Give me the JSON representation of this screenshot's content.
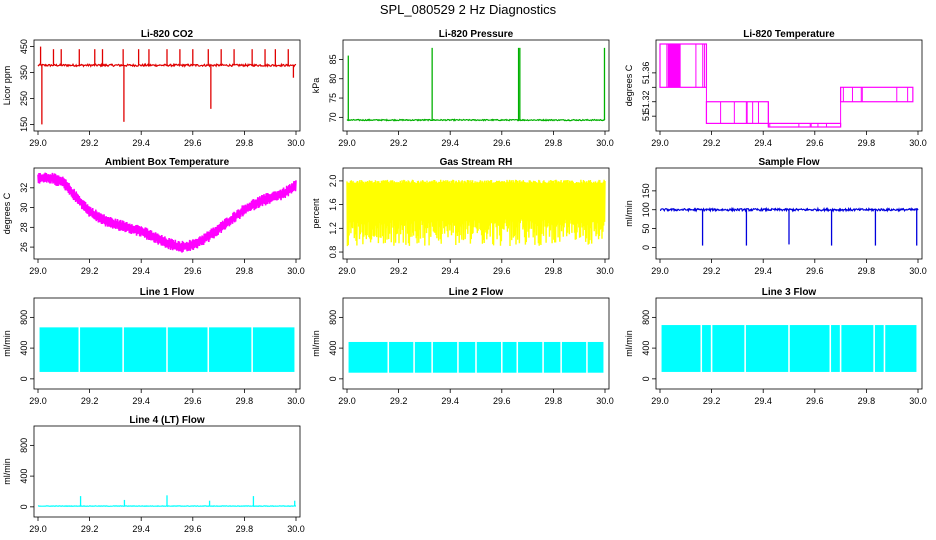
{
  "title": "SPL_080529  2 Hz Diagnostics",
  "chart_data": [
    {
      "id": "co2",
      "type": "line",
      "title": "Li-820 CO2",
      "ylabel": "Licor ppm",
      "color": "#e00000",
      "xlim": [
        29.0,
        30.0
      ],
      "ylim": [
        140,
        460
      ],
      "yticks": [
        150,
        250,
        350,
        450
      ],
      "ytick_labels": [
        "150",
        "250",
        "350",
        "450"
      ],
      "xticks": [
        29.0,
        29.2,
        29.4,
        29.6,
        29.8,
        30.0
      ],
      "xtick_labels": [
        "29.0",
        "29.2",
        "29.4",
        "29.6",
        "29.8",
        "30.0"
      ],
      "baseline": 378,
      "noise": 8,
      "events": [
        {
          "x": 29.01,
          "v": 450
        },
        {
          "x": 29.015,
          "v": 150
        },
        {
          "x": 29.06,
          "v": 440
        },
        {
          "x": 29.09,
          "v": 440
        },
        {
          "x": 29.16,
          "v": 440
        },
        {
          "x": 29.22,
          "v": 440
        },
        {
          "x": 29.25,
          "v": 440
        },
        {
          "x": 29.33,
          "v": 440
        },
        {
          "x": 29.333,
          "v": 160
        },
        {
          "x": 29.39,
          "v": 440
        },
        {
          "x": 29.43,
          "v": 440
        },
        {
          "x": 29.5,
          "v": 440
        },
        {
          "x": 29.55,
          "v": 440
        },
        {
          "x": 29.6,
          "v": 440
        },
        {
          "x": 29.66,
          "v": 440
        },
        {
          "x": 29.67,
          "v": 210
        },
        {
          "x": 29.71,
          "v": 440
        },
        {
          "x": 29.76,
          "v": 440
        },
        {
          "x": 29.83,
          "v": 440
        },
        {
          "x": 29.88,
          "v": 440
        },
        {
          "x": 29.92,
          "v": 440
        },
        {
          "x": 29.97,
          "v": 440
        },
        {
          "x": 29.99,
          "v": 330
        }
      ]
    },
    {
      "id": "pressure",
      "type": "line",
      "title": "Li-820 Pressure",
      "ylabel": "kPa",
      "color": "#00b000",
      "xlim": [
        29.0,
        30.0
      ],
      "ylim": [
        67.5,
        89
      ],
      "yticks": [
        70,
        75,
        80,
        85
      ],
      "ytick_labels": [
        "70",
        "75",
        "80",
        "85"
      ],
      "xticks": [
        29.0,
        29.2,
        29.4,
        29.6,
        29.8,
        30.0
      ],
      "xtick_labels": [
        "29.0",
        "29.2",
        "29.4",
        "29.6",
        "29.8",
        "30.0"
      ],
      "baseline": 69.3,
      "noise": 0.3,
      "events": [
        {
          "x": 29.005,
          "v": 86
        },
        {
          "x": 29.33,
          "v": 88
        },
        {
          "x": 29.665,
          "v": 88
        },
        {
          "x": 29.67,
          "v": 88
        },
        {
          "x": 29.998,
          "v": 88
        }
      ]
    },
    {
      "id": "temperature",
      "type": "line",
      "title": "Li-820 Temperature",
      "ylabel": "degrees C",
      "color": "#ff00ff",
      "xlim": [
        29.0,
        30.0
      ],
      "ylim": [
        51.285,
        51.4
      ],
      "yticks": [
        51.3,
        51.32,
        51.34,
        51.36
      ],
      "ytick_labels": [
        "51",
        "51.32",
        "",
        "51.36"
      ],
      "xticks": [
        29.0,
        29.2,
        29.4,
        29.6,
        29.8,
        30.0
      ],
      "xtick_labels": [
        "29.0",
        "29.2",
        "29.4",
        "29.6",
        "29.8",
        "30.0"
      ],
      "levels": [
        {
          "x0": 29.0,
          "x1": 29.18,
          "lo": 51.34,
          "hi": 51.4
        },
        {
          "x0": 29.18,
          "x1": 29.42,
          "lo": 51.29,
          "hi": 51.32
        },
        {
          "x0": 29.42,
          "x1": 29.7,
          "lo": 51.285,
          "hi": 51.29
        },
        {
          "x0": 29.7,
          "x1": 29.98,
          "lo": 51.32,
          "hi": 51.34
        }
      ]
    },
    {
      "id": "ambient",
      "type": "line",
      "title": "Ambient Box Temperature",
      "ylabel": "degrees C",
      "color": "#ff00ff",
      "xlim": [
        29.0,
        30.0
      ],
      "ylim": [
        25.2,
        33.6
      ],
      "yticks": [
        26,
        28,
        30,
        32
      ],
      "ytick_labels": [
        "26",
        "28",
        "30",
        "32"
      ],
      "xticks": [
        29.0,
        29.2,
        29.4,
        29.6,
        29.8,
        30.0
      ],
      "xtick_labels": [
        "29.0",
        "29.2",
        "29.4",
        "29.6",
        "29.8",
        "30.0"
      ],
      "x": [
        29.0,
        29.05,
        29.1,
        29.15,
        29.2,
        29.25,
        29.3,
        29.35,
        29.4,
        29.45,
        29.5,
        29.55,
        29.6,
        29.65,
        29.7,
        29.75,
        29.8,
        29.85,
        29.9,
        29.95,
        30.0
      ],
      "values": [
        33.0,
        33.0,
        32.5,
        31.0,
        29.6,
        28.8,
        28.3,
        28.0,
        27.6,
        27.0,
        26.4,
        26.0,
        26.2,
        26.9,
        27.8,
        28.8,
        29.8,
        30.5,
        31.0,
        31.4,
        32.2
      ],
      "band": 0.6
    },
    {
      "id": "rh",
      "type": "line",
      "title": "Gas Stream RH",
      "ylabel": "percent",
      "color": "#ffff00",
      "xlim": [
        29.0,
        30.0
      ],
      "ylim": [
        0.75,
        2.15
      ],
      "yticks": [
        0.8,
        1.2,
        1.6,
        2.0
      ],
      "ytick_labels": [
        "0.8",
        "1.2",
        "1.6",
        "2.0"
      ],
      "xticks": [
        29.0,
        29.2,
        29.4,
        29.6,
        29.8,
        30.0
      ],
      "xtick_labels": [
        "29.0",
        "29.2",
        "29.4",
        "29.6",
        "29.8",
        "30.0"
      ],
      "range": [
        0.9,
        2.02
      ]
    },
    {
      "id": "sample",
      "type": "line",
      "title": "Sample Flow",
      "ylabel": "ml/min",
      "color": "#0000dd",
      "xlim": [
        29.0,
        30.0
      ],
      "ylim": [
        -20,
        200
      ],
      "yticks": [
        0,
        50,
        100,
        150
      ],
      "ytick_labels": [
        "0",
        "50",
        "100",
        "150"
      ],
      "xticks": [
        29.0,
        29.2,
        29.4,
        29.6,
        29.8,
        30.0
      ],
      "xtick_labels": [
        "29.0",
        "29.2",
        "29.4",
        "29.6",
        "29.8",
        "30.0"
      ],
      "baseline": 100,
      "noise": 6,
      "events": [
        {
          "x": 29.165,
          "v": 5
        },
        {
          "x": 29.335,
          "v": 5
        },
        {
          "x": 29.5,
          "v": 8
        },
        {
          "x": 29.665,
          "v": 5
        },
        {
          "x": 29.835,
          "v": 5
        },
        {
          "x": 29.995,
          "v": 5
        }
      ]
    },
    {
      "id": "line1",
      "type": "line",
      "title": "Line 1 Flow",
      "ylabel": "ml/min",
      "color": "#00ffff",
      "xlim": [
        29.0,
        30.0
      ],
      "ylim": [
        -80,
        1000
      ],
      "yticks": [
        0,
        400,
        800
      ],
      "ytick_labels": [
        "0",
        "400",
        "800"
      ],
      "xticks": [
        29.0,
        29.2,
        29.4,
        29.6,
        29.8,
        30.0
      ],
      "xtick_labels": [
        "29.0",
        "29.2",
        "29.4",
        "29.6",
        "29.8",
        "30.0"
      ],
      "band": [
        90,
        670
      ],
      "gaps": [
        29.16,
        29.33,
        29.5,
        29.66,
        29.83
      ]
    },
    {
      "id": "line2",
      "type": "line",
      "title": "Line 2 Flow",
      "ylabel": "ml/min",
      "color": "#00ffff",
      "xlim": [
        29.0,
        30.0
      ],
      "ylim": [
        -80,
        1000
      ],
      "yticks": [
        0,
        400,
        800
      ],
      "ytick_labels": [
        "0",
        "400",
        "800"
      ],
      "xticks": [
        29.0,
        29.2,
        29.4,
        29.6,
        29.8,
        30.0
      ],
      "xtick_labels": [
        "29.0",
        "29.2",
        "29.4",
        "29.6",
        "29.8",
        "30.0"
      ],
      "band": [
        80,
        480
      ],
      "gaps": [
        29.16,
        29.26,
        29.33,
        29.43,
        29.5,
        29.6,
        29.66,
        29.76,
        29.83,
        29.93
      ]
    },
    {
      "id": "line3",
      "type": "line",
      "title": "Line 3 Flow",
      "ylabel": "ml/min",
      "color": "#00ffff",
      "xlim": [
        29.0,
        30.0
      ],
      "ylim": [
        -80,
        1000
      ],
      "yticks": [
        0,
        400,
        800
      ],
      "ytick_labels": [
        "0",
        "400",
        "800"
      ],
      "xticks": [
        29.0,
        29.2,
        29.4,
        29.6,
        29.8,
        30.0
      ],
      "xtick_labels": [
        "29.0",
        "29.2",
        "29.4",
        "29.6",
        "29.8",
        "30.0"
      ],
      "band": [
        90,
        700
      ],
      "gaps": [
        29.16,
        29.2,
        29.33,
        29.5,
        29.66,
        29.7,
        29.83,
        29.87
      ]
    },
    {
      "id": "line4",
      "type": "line",
      "title": "Line 4 (LT) Flow",
      "ylabel": "ml/min",
      "color": "#00ffff",
      "xlim": [
        29.0,
        30.0
      ],
      "ylim": [
        -80,
        1000
      ],
      "yticks": [
        0,
        400,
        800
      ],
      "ytick_labels": [
        "0",
        "400",
        "800"
      ],
      "xticks": [
        29.0,
        29.2,
        29.4,
        29.6,
        29.8,
        30.0
      ],
      "xtick_labels": [
        "29.0",
        "29.2",
        "29.4",
        "29.6",
        "29.8",
        "30.0"
      ],
      "baseline": 10,
      "noise": 6,
      "events": [
        {
          "x": 29.165,
          "v": 140
        },
        {
          "x": 29.335,
          "v": 90
        },
        {
          "x": 29.5,
          "v": 150
        },
        {
          "x": 29.665,
          "v": 80
        },
        {
          "x": 29.835,
          "v": 140
        },
        {
          "x": 29.995,
          "v": 80
        }
      ]
    }
  ]
}
